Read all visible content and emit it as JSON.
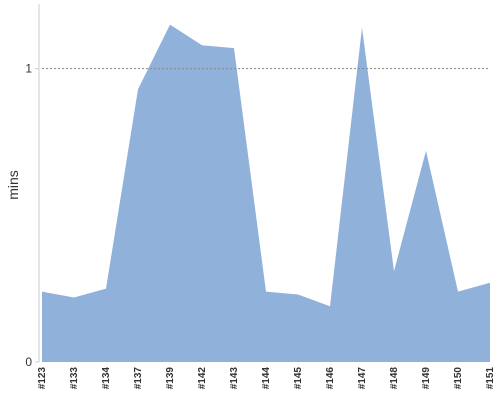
{
  "chart_data": {
    "type": "area",
    "categories": [
      "#123",
      "#133",
      "#134",
      "#137",
      "#139",
      "#142",
      "#143",
      "#144",
      "#145",
      "#146",
      "#147",
      "#148",
      "#149",
      "#150",
      "#151"
    ],
    "series": [
      {
        "values": [
          0.24,
          0.22,
          0.25,
          0.93,
          1.15,
          1.08,
          1.07,
          0.24,
          0.23,
          0.19,
          1.14,
          0.31,
          0.72,
          0.24,
          0.27
        ]
      }
    ],
    "title": "",
    "xlabel": "",
    "ylabel": "mins",
    "ylim": [
      0,
      1.2
    ],
    "yticks": [
      0,
      1
    ],
    "reference_line": {
      "value": 1,
      "style": "dotted"
    },
    "grid": false,
    "legend": "none",
    "colors": {
      "area": "#90b2da",
      "axis": "#cccccc",
      "reference": "#888888",
      "text": "#333333"
    }
  }
}
